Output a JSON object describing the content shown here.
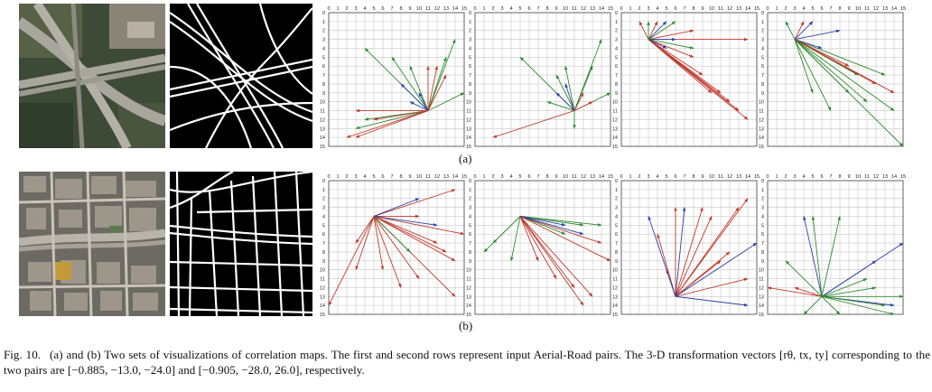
{
  "figure": {
    "sublabels": [
      "(a)",
      "(b)"
    ],
    "caption": {
      "number": "Fig. 10.",
      "text": "(a) and (b) Two sets of visualizations of correlation maps. The first and second rows represent input Aerial-Road pairs. The 3-D transformation vectors [rθ, tx, ty] corresponding to the two pairs are [−0.885, −13.0, −24.0] and [−0.905, −28.0, 26.0], respectively."
    }
  },
  "colors": {
    "red": "#c0392b",
    "green": "#2e8b2e",
    "blue": "#2b3fa8",
    "grid": "#c8c8c8",
    "road": "#ffffff",
    "road_bg": "#000000"
  },
  "chart_data": [
    {
      "type": "scatter",
      "chart": "row-a-plot-1",
      "xlim": [
        0,
        15
      ],
      "ylim": [
        0,
        15
      ],
      "origin": [
        11,
        11
      ],
      "tick_labels": [
        "0",
        "1",
        "2",
        "3",
        "4",
        "5",
        "6",
        "7",
        "8",
        "9",
        "10",
        "11",
        "12",
        "13",
        "14",
        "15"
      ],
      "vectors": [
        {
          "to": [
            4,
            4
          ],
          "c": "green"
        },
        {
          "to": [
            7,
            5
          ],
          "c": "green"
        },
        {
          "to": [
            9,
            6
          ],
          "c": "green"
        },
        {
          "to": [
            13,
            5
          ],
          "c": "green"
        },
        {
          "to": [
            14,
            3
          ],
          "c": "green"
        },
        {
          "to": [
            15,
            9
          ],
          "c": "green"
        },
        {
          "to": [
            3,
            13
          ],
          "c": "green"
        },
        {
          "to": [
            4,
            12
          ],
          "c": "green"
        },
        {
          "to": [
            10,
            9
          ],
          "c": "blue"
        },
        {
          "to": [
            8,
            8
          ],
          "c": "blue"
        },
        {
          "to": [
            9,
            10
          ],
          "c": "blue"
        },
        {
          "to": [
            2,
            14
          ],
          "c": "red"
        },
        {
          "to": [
            3,
            14
          ],
          "c": "red"
        },
        {
          "to": [
            3,
            11
          ],
          "c": "red"
        },
        {
          "to": [
            5,
            12
          ],
          "c": "red"
        },
        {
          "to": [
            12,
            6
          ],
          "c": "red"
        },
        {
          "to": [
            13,
            7
          ],
          "c": "red"
        },
        {
          "to": [
            11,
            6
          ],
          "c": "red"
        }
      ]
    },
    {
      "type": "scatter",
      "chart": "row-a-plot-2",
      "xlim": [
        0,
        15
      ],
      "ylim": [
        0,
        15
      ],
      "origin": [
        11,
        11
      ],
      "tick_labels": [
        "0",
        "1",
        "2",
        "3",
        "4",
        "5",
        "6",
        "7",
        "8",
        "9",
        "10",
        "11",
        "12",
        "13",
        "14",
        "15"
      ],
      "vectors": [
        {
          "to": [
            5,
            5
          ],
          "c": "green"
        },
        {
          "to": [
            9,
            7
          ],
          "c": "green"
        },
        {
          "to": [
            10,
            6
          ],
          "c": "green"
        },
        {
          "to": [
            13,
            6
          ],
          "c": "green"
        },
        {
          "to": [
            14,
            3
          ],
          "c": "green"
        },
        {
          "to": [
            15,
            9
          ],
          "c": "green"
        },
        {
          "to": [
            11,
            13
          ],
          "c": "green"
        },
        {
          "to": [
            8,
            10
          ],
          "c": "green"
        },
        {
          "to": [
            10,
            8
          ],
          "c": "blue"
        },
        {
          "to": [
            9,
            9
          ],
          "c": "blue"
        },
        {
          "to": [
            2,
            14
          ],
          "c": "red"
        },
        {
          "to": [
            12,
            9
          ],
          "c": "red"
        },
        {
          "to": [
            13,
            10
          ],
          "c": "red"
        }
      ]
    },
    {
      "type": "scatter",
      "chart": "row-a-plot-3",
      "xlim": [
        0,
        15
      ],
      "ylim": [
        0,
        15
      ],
      "origin": [
        3,
        3
      ],
      "tick_labels": [
        "0",
        "1",
        "2",
        "3",
        "4",
        "5",
        "6",
        "7",
        "8",
        "9",
        "10",
        "11",
        "12",
        "13",
        "14",
        "15"
      ],
      "vectors": [
        {
          "to": [
            2,
            1
          ],
          "c": "red"
        },
        {
          "to": [
            4,
            1
          ],
          "c": "red"
        },
        {
          "to": [
            14,
            3
          ],
          "c": "red"
        },
        {
          "to": [
            8,
            2
          ],
          "c": "red"
        },
        {
          "to": [
            14,
            12
          ],
          "c": "red"
        },
        {
          "to": [
            13,
            11
          ],
          "c": "red"
        },
        {
          "to": [
            12,
            10
          ],
          "c": "red"
        },
        {
          "to": [
            11,
            9
          ],
          "c": "red"
        },
        {
          "to": [
            10,
            9
          ],
          "c": "red"
        },
        {
          "to": [
            9,
            7
          ],
          "c": "red"
        },
        {
          "to": [
            8,
            5
          ],
          "c": "red"
        },
        {
          "to": [
            5,
            1
          ],
          "c": "blue"
        },
        {
          "to": [
            6,
            3
          ],
          "c": "blue"
        },
        {
          "to": [
            5,
            4
          ],
          "c": "blue"
        },
        {
          "to": [
            3,
            1
          ],
          "c": "green"
        },
        {
          "to": [
            6,
            1
          ],
          "c": "green"
        },
        {
          "to": [
            8,
            4
          ],
          "c": "green"
        }
      ]
    },
    {
      "type": "scatter",
      "chart": "row-a-plot-4",
      "xlim": [
        0,
        15
      ],
      "ylim": [
        0,
        15
      ],
      "origin": [
        3,
        3
      ],
      "tick_labels": [
        "0",
        "1",
        "2",
        "3",
        "4",
        "5",
        "6",
        "7",
        "8",
        "9",
        "10",
        "11",
        "12",
        "13",
        "14",
        "15"
      ],
      "vectors": [
        {
          "to": [
            15,
            15
          ],
          "c": "green"
        },
        {
          "to": [
            14,
            11
          ],
          "c": "green"
        },
        {
          "to": [
            13,
            7
          ],
          "c": "green"
        },
        {
          "to": [
            11,
            10
          ],
          "c": "green"
        },
        {
          "to": [
            9,
            9
          ],
          "c": "green"
        },
        {
          "to": [
            7,
            11
          ],
          "c": "green"
        },
        {
          "to": [
            5,
            9
          ],
          "c": "green"
        },
        {
          "to": [
            10,
            7
          ],
          "c": "green"
        },
        {
          "to": [
            2,
            1
          ],
          "c": "green"
        },
        {
          "to": [
            5,
            1
          ],
          "c": "blue"
        },
        {
          "to": [
            8,
            2
          ],
          "c": "blue"
        },
        {
          "to": [
            6,
            4
          ],
          "c": "blue"
        },
        {
          "to": [
            4,
            1
          ],
          "c": "red"
        },
        {
          "to": [
            14,
            9
          ],
          "c": "red"
        },
        {
          "to": [
            12,
            8
          ],
          "c": "red"
        },
        {
          "to": [
            9,
            6
          ],
          "c": "red"
        }
      ]
    },
    {
      "type": "scatter",
      "chart": "row-b-plot-1",
      "xlim": [
        0,
        15
      ],
      "ylim": [
        0,
        15
      ],
      "origin": [
        5,
        4
      ],
      "tick_labels": [
        "0",
        "1",
        "2",
        "3",
        "4",
        "5",
        "6",
        "7",
        "8",
        "9",
        "10",
        "11",
        "12",
        "13",
        "14",
        "15"
      ],
      "vectors": [
        {
          "to": [
            0,
            14
          ],
          "c": "red"
        },
        {
          "to": [
            3,
            10
          ],
          "c": "red"
        },
        {
          "to": [
            6,
            10
          ],
          "c": "red"
        },
        {
          "to": [
            8,
            12
          ],
          "c": "red"
        },
        {
          "to": [
            10,
            11
          ],
          "c": "red"
        },
        {
          "to": [
            14,
            13
          ],
          "c": "red"
        },
        {
          "to": [
            14,
            9
          ],
          "c": "red"
        },
        {
          "to": [
            13,
            8
          ],
          "c": "red"
        },
        {
          "to": [
            15,
            6
          ],
          "c": "red"
        },
        {
          "to": [
            14,
            1
          ],
          "c": "red"
        },
        {
          "to": [
            10,
            4
          ],
          "c": "red"
        },
        {
          "to": [
            12,
            7
          ],
          "c": "red"
        },
        {
          "to": [
            3,
            7
          ],
          "c": "red"
        },
        {
          "to": [
            10,
            2
          ],
          "c": "blue"
        },
        {
          "to": [
            12,
            5
          ],
          "c": "blue"
        },
        {
          "to": [
            9,
            8
          ],
          "c": "green"
        }
      ]
    },
    {
      "type": "scatter",
      "chart": "row-b-plot-2",
      "xlim": [
        0,
        15
      ],
      "ylim": [
        0,
        15
      ],
      "origin": [
        5,
        4
      ],
      "tick_labels": [
        "0",
        "1",
        "2",
        "3",
        "4",
        "5",
        "6",
        "7",
        "8",
        "9",
        "10",
        "11",
        "12",
        "13",
        "14",
        "15"
      ],
      "vectors": [
        {
          "to": [
            1,
            8
          ],
          "c": "green"
        },
        {
          "to": [
            2,
            7
          ],
          "c": "green"
        },
        {
          "to": [
            4,
            9
          ],
          "c": "green"
        },
        {
          "to": [
            10,
            6
          ],
          "c": "green"
        },
        {
          "to": [
            14,
            5
          ],
          "c": "green"
        },
        {
          "to": [
            12,
            5
          ],
          "c": "green"
        },
        {
          "to": [
            13,
            13
          ],
          "c": "red"
        },
        {
          "to": [
            12,
            14
          ],
          "c": "red"
        },
        {
          "to": [
            11,
            12
          ],
          "c": "red"
        },
        {
          "to": [
            9,
            11
          ],
          "c": "red"
        },
        {
          "to": [
            7,
            9
          ],
          "c": "red"
        },
        {
          "to": [
            15,
            9
          ],
          "c": "red"
        },
        {
          "to": [
            14,
            7
          ],
          "c": "red"
        },
        {
          "to": [
            10,
            5
          ],
          "c": "blue"
        },
        {
          "to": [
            12,
            6
          ],
          "c": "blue"
        }
      ]
    },
    {
      "type": "scatter",
      "chart": "row-b-plot-3",
      "xlim": [
        0,
        15
      ],
      "ylim": [
        0,
        15
      ],
      "origin": [
        6,
        13
      ],
      "tick_labels": [
        "0",
        "1",
        "2",
        "3",
        "4",
        "5",
        "6",
        "7",
        "8",
        "9",
        "10",
        "11",
        "12",
        "13",
        "14",
        "15"
      ],
      "vectors": [
        {
          "to": [
            14,
            2
          ],
          "c": "red"
        },
        {
          "to": [
            13,
            3
          ],
          "c": "red"
        },
        {
          "to": [
            10,
            4
          ],
          "c": "red"
        },
        {
          "to": [
            9,
            3
          ],
          "c": "red"
        },
        {
          "to": [
            6,
            3
          ],
          "c": "red"
        },
        {
          "to": [
            4,
            6
          ],
          "c": "red"
        },
        {
          "to": [
            5,
            10
          ],
          "c": "red"
        },
        {
          "to": [
            11,
            9
          ],
          "c": "red"
        },
        {
          "to": [
            12,
            8
          ],
          "c": "red"
        },
        {
          "to": [
            14,
            11
          ],
          "c": "red"
        },
        {
          "to": [
            3,
            4
          ],
          "c": "blue"
        },
        {
          "to": [
            15,
            7
          ],
          "c": "blue"
        },
        {
          "to": [
            14,
            14
          ],
          "c": "blue"
        },
        {
          "to": [
            7,
            3
          ],
          "c": "blue"
        }
      ]
    },
    {
      "type": "scatter",
      "chart": "row-b-plot-4",
      "xlim": [
        0,
        15
      ],
      "ylim": [
        0,
        15
      ],
      "origin": [
        6,
        13
      ],
      "tick_labels": [
        "0",
        "1",
        "2",
        "3",
        "4",
        "5",
        "6",
        "7",
        "8",
        "9",
        "10",
        "11",
        "12",
        "13",
        "14",
        "15"
      ],
      "vectors": [
        {
          "to": [
            15,
            7
          ],
          "c": "blue"
        },
        {
          "to": [
            12,
            9
          ],
          "c": "blue"
        },
        {
          "to": [
            4,
            4
          ],
          "c": "blue"
        },
        {
          "to": [
            14,
            14
          ],
          "c": "blue"
        },
        {
          "to": [
            5,
            4
          ],
          "c": "green"
        },
        {
          "to": [
            8,
            4
          ],
          "c": "green"
        },
        {
          "to": [
            2,
            9
          ],
          "c": "green"
        },
        {
          "to": [
            15,
            13
          ],
          "c": "green"
        },
        {
          "to": [
            13,
            14
          ],
          "c": "green"
        },
        {
          "to": [
            12,
            12
          ],
          "c": "green"
        },
        {
          "to": [
            11,
            11
          ],
          "c": "green"
        },
        {
          "to": [
            8,
            15
          ],
          "c": "green"
        },
        {
          "to": [
            4,
            15
          ],
          "c": "green"
        },
        {
          "to": [
            14,
            15
          ],
          "c": "green"
        },
        {
          "to": [
            0,
            12
          ],
          "c": "red"
        },
        {
          "to": [
            3,
            12
          ],
          "c": "red"
        }
      ]
    }
  ]
}
